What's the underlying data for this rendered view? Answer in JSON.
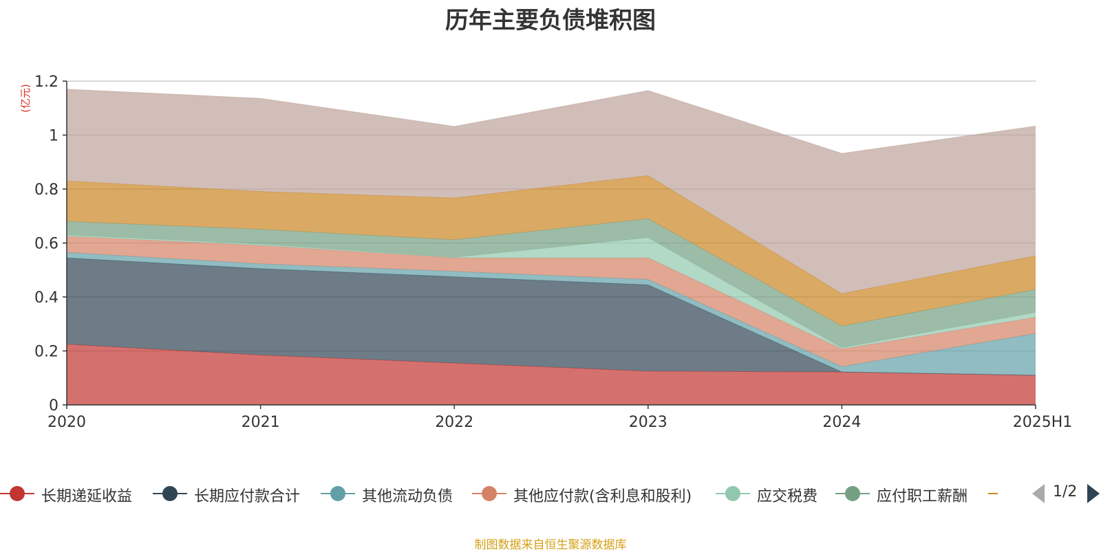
{
  "title": "历年主要负债堆积图",
  "source": "制图数据来自恒生聚源数据库",
  "pager": "1/2",
  "chart_data": {
    "type": "area",
    "stacked": true,
    "title": "历年主要负债堆积图",
    "ylabel": "(亿元)",
    "xlabel": "",
    "ylim": [
      0,
      1.2
    ],
    "yticks": [
      0,
      0.2,
      0.4,
      0.6,
      0.8,
      1,
      1.2
    ],
    "ytick_labels": [
      "0",
      "0.2",
      "0.4",
      "0.6",
      "0.8",
      "1",
      "1.2"
    ],
    "grid": true,
    "legend_position": "bottom",
    "categories": [
      "2020",
      "2021",
      "2022",
      "2023",
      "2024",
      "2025H1"
    ],
    "series": [
      {
        "name": "长期递延收益",
        "color": "#c23531",
        "values": [
          0.225,
          0.185,
          0.155,
          0.125,
          0.122,
          0.11
        ],
        "legend": true
      },
      {
        "name": "长期应付款合计",
        "color": "#2f4554",
        "values": [
          0.32,
          0.32,
          0.32,
          0.32,
          0.0,
          0.0
        ],
        "legend": true
      },
      {
        "name": "其他流动负债",
        "color": "#61a0a8",
        "values": [
          0.02,
          0.018,
          0.02,
          0.02,
          0.02,
          0.155
        ],
        "legend": true
      },
      {
        "name": "其他应付款(含利息和股利)",
        "color": "#d48265",
        "values": [
          0.06,
          0.068,
          0.05,
          0.08,
          0.065,
          0.06
        ],
        "legend": true
      },
      {
        "name": "应交税费",
        "color": "#91c7ae",
        "values": [
          0.005,
          0.005,
          0.002,
          0.075,
          0.005,
          0.018
        ],
        "legend": true
      },
      {
        "name": "应付职工薪酬",
        "color": "#749f83",
        "values": [
          0.05,
          0.055,
          0.065,
          0.07,
          0.08,
          0.085
        ],
        "legend": true
      },
      {
        "name": "",
        "color": "#ca8622",
        "values": [
          0.15,
          0.14,
          0.155,
          0.16,
          0.12,
          0.125
        ],
        "legend": false
      },
      {
        "name": "",
        "color": "#bda29a",
        "values": [
          0.34,
          0.345,
          0.265,
          0.315,
          0.52,
          0.48
        ],
        "legend": false
      }
    ]
  },
  "legend_items": [
    {
      "label": "长期递延收益",
      "color": "#c23531"
    },
    {
      "label": "长期应付款合计",
      "color": "#2f4554"
    },
    {
      "label": "其他流动负债",
      "color": "#61a0a8"
    },
    {
      "label": "其他应付款(含利息和股利)",
      "color": "#d48265"
    },
    {
      "label": "应交税费",
      "color": "#91c7ae"
    },
    {
      "label": "应付职工薪酬",
      "color": "#749f83"
    }
  ]
}
